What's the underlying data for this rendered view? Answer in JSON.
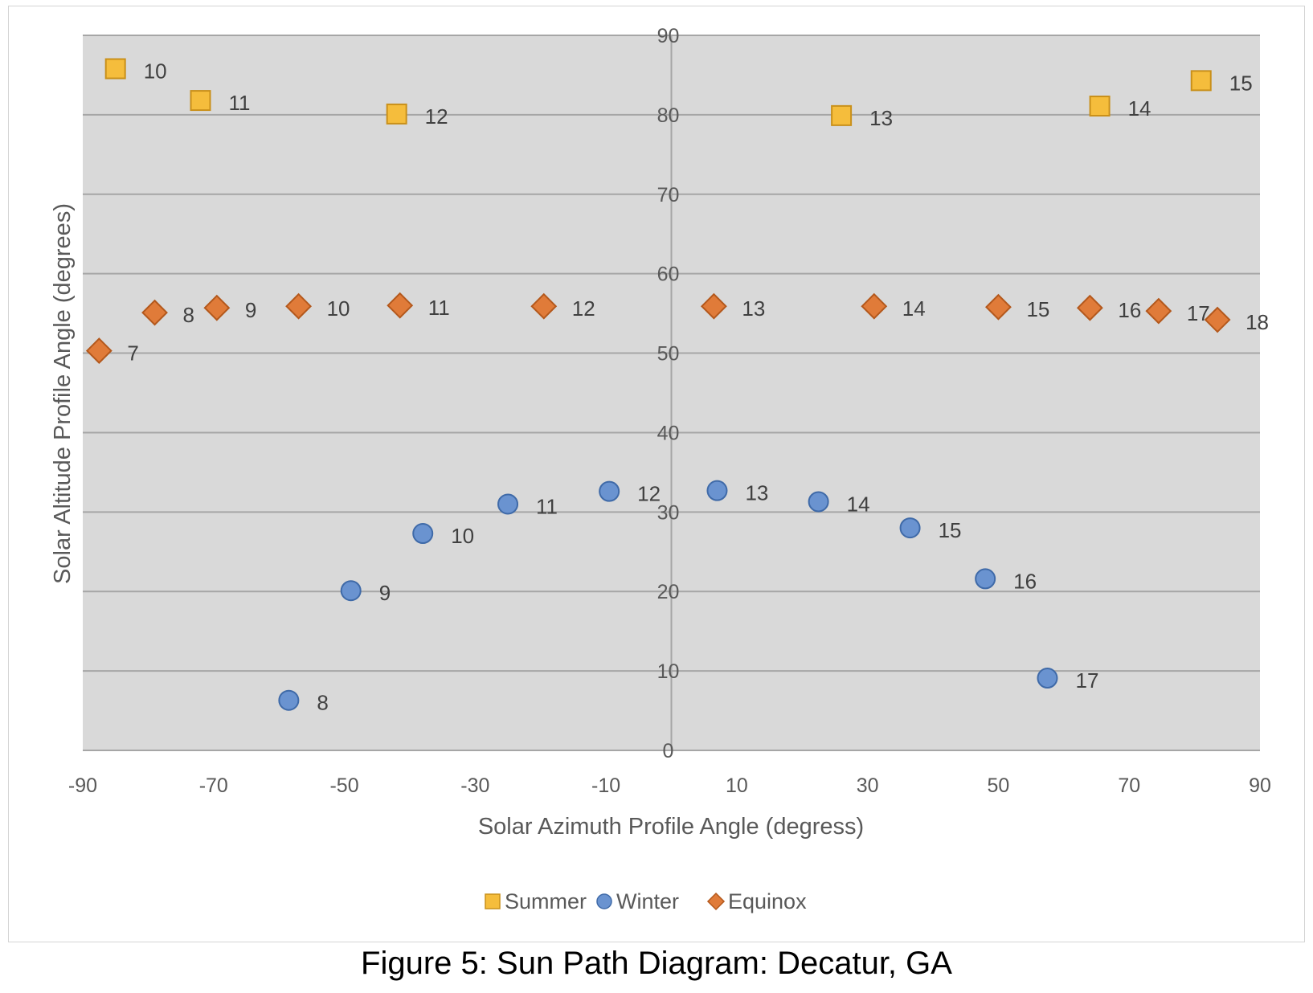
{
  "caption": "Figure 5: Sun Path Diagram: Decatur, GA",
  "chart_data": {
    "type": "scatter",
    "title": "",
    "xlabel": "Solar Azimuth Profile Angle (degress)",
    "ylabel": "Solar Altitude Profile Angle (degrees)",
    "xlim": [
      -90,
      90
    ],
    "ylim": [
      0,
      90
    ],
    "xticks": [
      "-90",
      "-70",
      "-50",
      "-30",
      "-10",
      "10",
      "30",
      "50",
      "70",
      "90"
    ],
    "yticks": [
      "0",
      "10",
      "20",
      "30",
      "40",
      "50",
      "60",
      "70",
      "80",
      "90"
    ],
    "grid": "horizontal",
    "plot_background": "#d9d9d9",
    "legend_position": "bottom",
    "series": [
      {
        "name": "Summer",
        "marker": "square",
        "color": "#f5bd3c",
        "stroke": "#c9901a",
        "points": [
          {
            "x": -85,
            "y": 85.8,
            "label": "10"
          },
          {
            "x": -72,
            "y": 81.8,
            "label": "11"
          },
          {
            "x": -42,
            "y": 80.1,
            "label": "12"
          },
          {
            "x": 26,
            "y": 79.9,
            "label": "13"
          },
          {
            "x": 65.5,
            "y": 81.1,
            "label": "14"
          },
          {
            "x": 81,
            "y": 84.3,
            "label": "15"
          }
        ]
      },
      {
        "name": "Winter",
        "marker": "circle",
        "color": "#6a93d0",
        "stroke": "#3f6aa8",
        "points": [
          {
            "x": -58.5,
            "y": 6.3,
            "label": "8"
          },
          {
            "x": -49,
            "y": 20.1,
            "label": "9"
          },
          {
            "x": -38,
            "y": 27.3,
            "label": "10"
          },
          {
            "x": -25,
            "y": 31.0,
            "label": "11"
          },
          {
            "x": -9.5,
            "y": 32.6,
            "label": "12"
          },
          {
            "x": 7,
            "y": 32.7,
            "label": "13"
          },
          {
            "x": 22.5,
            "y": 31.3,
            "label": "14"
          },
          {
            "x": 36.5,
            "y": 28.0,
            "label": "15"
          },
          {
            "x": 48,
            "y": 21.6,
            "label": "16"
          },
          {
            "x": 57.5,
            "y": 9.1,
            "label": "17"
          }
        ]
      },
      {
        "name": "Equinox",
        "marker": "diamond",
        "color": "#e07b39",
        "stroke": "#b3581c",
        "points": [
          {
            "x": -87.5,
            "y": 50.3,
            "label": "7"
          },
          {
            "x": -79,
            "y": 55.1,
            "label": "8"
          },
          {
            "x": -69.5,
            "y": 55.7,
            "label": "9"
          },
          {
            "x": -57,
            "y": 55.9,
            "label": "10"
          },
          {
            "x": -41.5,
            "y": 56.0,
            "label": "11"
          },
          {
            "x": -19.5,
            "y": 55.9,
            "label": "12"
          },
          {
            "x": 6.5,
            "y": 55.9,
            "label": "13"
          },
          {
            "x": 31,
            "y": 55.9,
            "label": "14"
          },
          {
            "x": 50,
            "y": 55.8,
            "label": "15"
          },
          {
            "x": 64,
            "y": 55.7,
            "label": "16"
          },
          {
            "x": 74.5,
            "y": 55.3,
            "label": "17"
          },
          {
            "x": 83.5,
            "y": 54.2,
            "label": "18"
          }
        ]
      }
    ]
  }
}
